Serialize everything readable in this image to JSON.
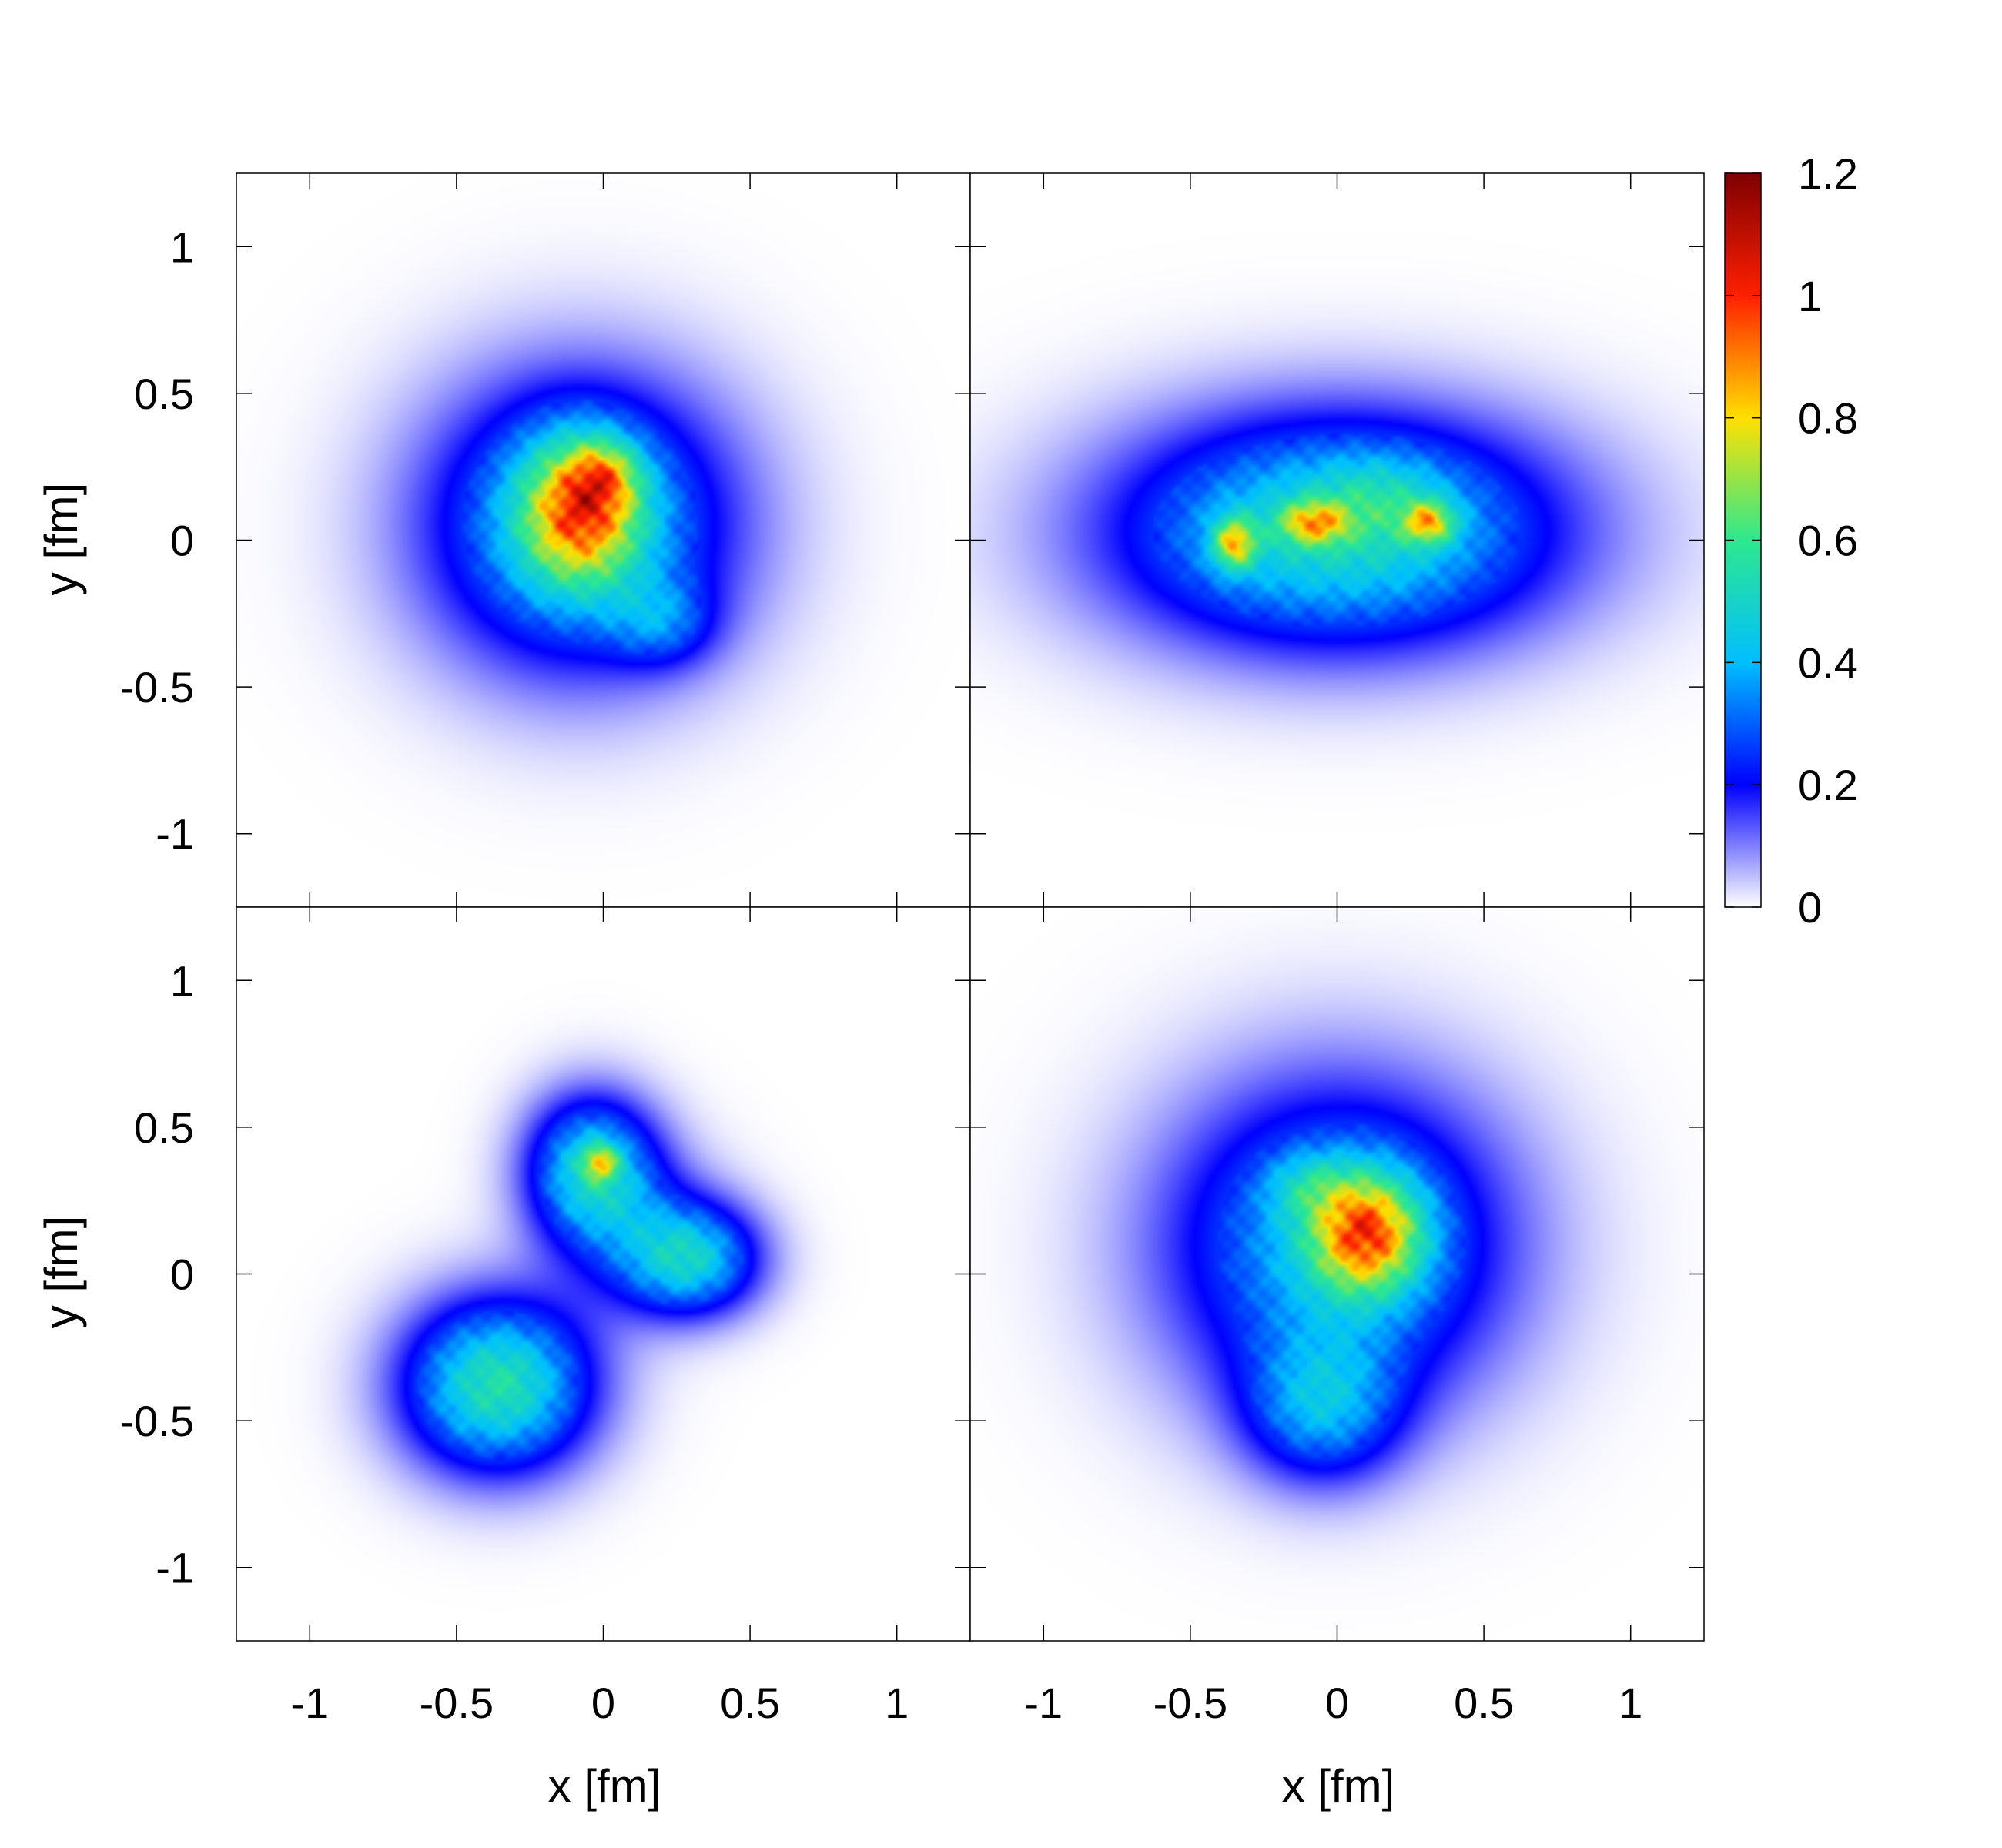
{
  "chart_data": {
    "type": "heatmap",
    "layout": "2x2 panels",
    "panels": [
      {
        "position": "top-left",
        "xlim": [
          -1.25,
          1.25
        ],
        "ylim": [
          -1.25,
          1.25
        ],
        "blobs": [
          {
            "x": -0.08,
            "y": 0.05,
            "sx": 0.36,
            "sy": 0.34,
            "peak": 0.45
          },
          {
            "x": -0.08,
            "y": 0.1,
            "sx": 0.14,
            "sy": 0.17,
            "peak": 0.55
          },
          {
            "x": 0.0,
            "y": 0.22,
            "sx": 0.08,
            "sy": 0.08,
            "peak": 0.25
          },
          {
            "x": 0.2,
            "y": -0.28,
            "sx": 0.12,
            "sy": 0.1,
            "peak": 0.18
          }
        ]
      },
      {
        "position": "top-right",
        "xlim": [
          -1.25,
          1.25
        ],
        "ylim": [
          -1.25,
          1.25
        ],
        "blobs": [
          {
            "x": 0.0,
            "y": 0.03,
            "sx": 0.52,
            "sy": 0.27,
            "peak": 0.52
          },
          {
            "x": -0.35,
            "y": -0.01,
            "sx": 0.05,
            "sy": 0.06,
            "peak": 0.45
          },
          {
            "x": -0.08,
            "y": 0.06,
            "sx": 0.08,
            "sy": 0.05,
            "peak": 0.38
          },
          {
            "x": 0.31,
            "y": 0.06,
            "sx": 0.06,
            "sy": 0.05,
            "peak": 0.4
          },
          {
            "x": 0.15,
            "y": 0.15,
            "sx": 0.15,
            "sy": 0.1,
            "peak": 0.12
          }
        ]
      },
      {
        "position": "bottom-left",
        "xlim": [
          -1.25,
          1.25
        ],
        "ylim": [
          -1.25,
          1.25
        ],
        "blobs": [
          {
            "x": -0.36,
            "y": -0.38,
            "sx": 0.22,
            "sy": 0.2,
            "peak": 0.55
          },
          {
            "x": -0.04,
            "y": 0.36,
            "sx": 0.15,
            "sy": 0.17,
            "peak": 0.45
          },
          {
            "x": 0.3,
            "y": 0.05,
            "sx": 0.16,
            "sy": 0.13,
            "peak": 0.42
          },
          {
            "x": 0.1,
            "y": 0.15,
            "sx": 0.2,
            "sy": 0.2,
            "peak": 0.15
          },
          {
            "x": -0.01,
            "y": 0.38,
            "sx": 0.04,
            "sy": 0.04,
            "peak": 0.35
          }
        ]
      },
      {
        "position": "bottom-right",
        "xlim": [
          -1.25,
          1.25
        ],
        "ylim": [
          -1.25,
          1.25
        ],
        "blobs": [
          {
            "x": 0.0,
            "y": 0.1,
            "sx": 0.4,
            "sy": 0.38,
            "peak": 0.42
          },
          {
            "x": 0.1,
            "y": 0.14,
            "sx": 0.13,
            "sy": 0.14,
            "peak": 0.6
          },
          {
            "x": -0.05,
            "y": -0.46,
            "sx": 0.18,
            "sy": 0.17,
            "peak": 0.3
          },
          {
            "x": -0.1,
            "y": 0.3,
            "sx": 0.1,
            "sy": 0.08,
            "peak": 0.15
          }
        ]
      }
    ],
    "xticks": [
      -1,
      -0.5,
      0,
      0.5,
      1
    ],
    "yticks": [
      -1,
      -0.5,
      0,
      0.5,
      1
    ],
    "xtick_labels": [
      "-1",
      "-0.5",
      "0",
      "0.5",
      "1"
    ],
    "ytick_labels": [
      "-1",
      "-0.5",
      "0",
      "0.5",
      "1"
    ],
    "xlabel": "x [fm]",
    "ylabel": "y [fm]",
    "colorbar": {
      "range": [
        0,
        1.2
      ],
      "ticks": [
        0,
        0.2,
        0.4,
        0.6,
        0.8,
        1,
        1.2
      ],
      "tick_labels": [
        "0",
        "0.2",
        "0.4",
        "0.6",
        "0.8",
        "1",
        "1.2"
      ],
      "colormap": [
        "#ffffff",
        "#0000ff",
        "#00bfff",
        "#2ee88f",
        "#ffe000",
        "#ff2000",
        "#7f0000"
      ]
    }
  }
}
